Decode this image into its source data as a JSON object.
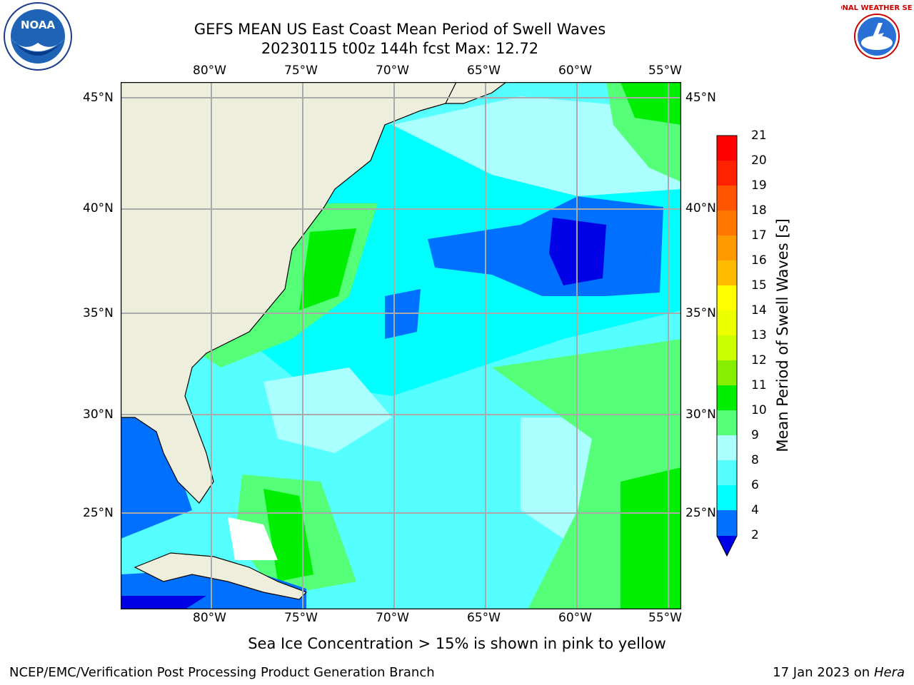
{
  "header": {
    "title_line1": "GEFS MEAN US East Coast Mean Period of Swell Waves",
    "title_line2": "20230115 t00z 144h fcst   Max: 12.72"
  },
  "logos": {
    "left_text": "NOAA",
    "right_text": "NATIONAL WEATHER SERVICE"
  },
  "map": {
    "lon_labels": [
      "80°W",
      "75°W",
      "70°W",
      "65°W",
      "60°W",
      "55°W"
    ],
    "lat_labels": [
      "45°N",
      "40°N",
      "35°N",
      "30°N",
      "25°N"
    ]
  },
  "colorbar": {
    "label": "Mean Period of Swell Waves [s]",
    "ticks": [
      "21",
      "20",
      "19",
      "18",
      "17",
      "16",
      "15",
      "14",
      "13",
      "12",
      "11",
      "10",
      "9",
      "8",
      "6",
      "4",
      "2"
    ],
    "colors": {
      "land": "#eeeedc",
      "blue_dark": "#0000e6",
      "blue": "#0070ff",
      "cyan": "#00ffff",
      "cyan_light": "#55ffff",
      "pale_cyan": "#aaffff",
      "light_green": "#55ff77",
      "green": "#00ee00",
      "yellow_green": "#88ee00",
      "yellow": "#ffff00",
      "orange": "#ff9900",
      "red": "#ff0000"
    }
  },
  "footer": {
    "note": "Sea Ice Concentration > 15% is shown in pink to yellow",
    "credit": "NCEP/EMC/Verification Post Processing Product Generation Branch",
    "date": "17 Jan 2023 on",
    "machine": "Hera"
  }
}
